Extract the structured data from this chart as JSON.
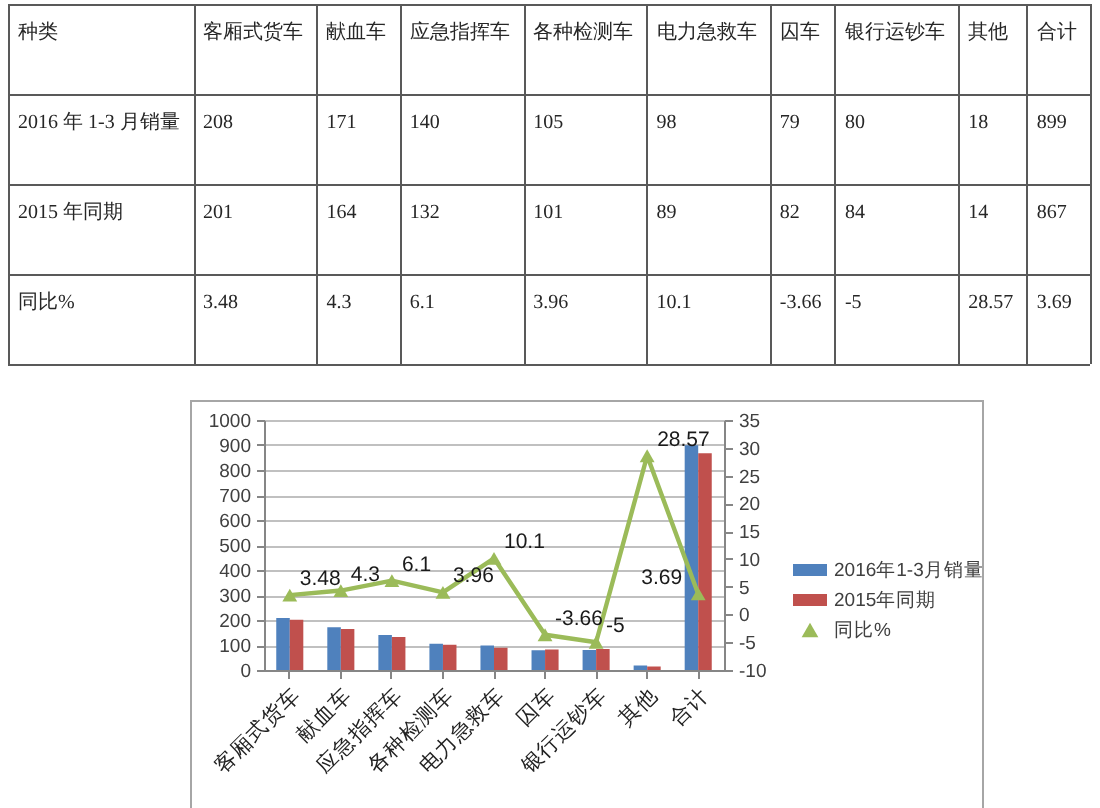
{
  "chart_data": [
    {
      "type": "other",
      "annotations": [
        "种类"
      ],
      "categories": [
        "客厢式货车",
        "献血车",
        "应急指挥车",
        "各种检测车",
        "电力急救车",
        "囚车",
        "银行运钞车",
        "其他",
        "合计"
      ],
      "series": [
        {
          "name": "2016 年 1-3 月销量",
          "values": [
            208,
            171,
            140,
            105,
            98,
            79,
            80,
            18,
            899
          ]
        },
        {
          "name": "2015 年同期",
          "values": [
            201,
            164,
            132,
            101,
            89,
            82,
            84,
            14,
            867
          ]
        },
        {
          "name": "同比%",
          "values": [
            3.48,
            4.3,
            6.1,
            3.96,
            10.1,
            -3.66,
            -5,
            28.57,
            3.69
          ]
        }
      ],
      "data_labels": true
    },
    {
      "type": "bar",
      "categories": [
        "客厢式货车",
        "献血车",
        "应急指挥车",
        "各种检测车",
        "电力急救车",
        "囚车",
        "银行运钞车",
        "其他",
        "合计"
      ],
      "series": [
        {
          "name": "2016年1-3月销量",
          "color": "#4f81bd",
          "values": [
            208,
            171,
            140,
            105,
            98,
            79,
            80,
            18,
            899
          ]
        },
        {
          "name": "2015年同期",
          "color": "#c0504d",
          "values": [
            201,
            164,
            132,
            101,
            89,
            82,
            84,
            14,
            867
          ]
        },
        {
          "name": "同比%",
          "type": "line",
          "axis": "y2",
          "color": "#9bbb59",
          "values": [
            3.48,
            4.3,
            6.1,
            3.96,
            10.1,
            -3.66,
            -5,
            28.57,
            3.69
          ],
          "value_labels": [
            "3.48",
            "4.3",
            "6.1",
            "3.96",
            "10.1",
            "-3.66",
            "-5",
            "28.57",
            "3.69"
          ]
        }
      ],
      "ylim": [
        0,
        1000
      ],
      "yticks": [
        0,
        100,
        200,
        300,
        400,
        500,
        600,
        700,
        800,
        900,
        1000
      ],
      "y2lim": [
        -10,
        35
      ],
      "y2ticks": [
        -10,
        -5,
        0,
        5,
        10,
        15,
        20,
        25,
        30,
        35
      ],
      "grid": "y",
      "legend": "right",
      "marker": "triangle"
    }
  ]
}
